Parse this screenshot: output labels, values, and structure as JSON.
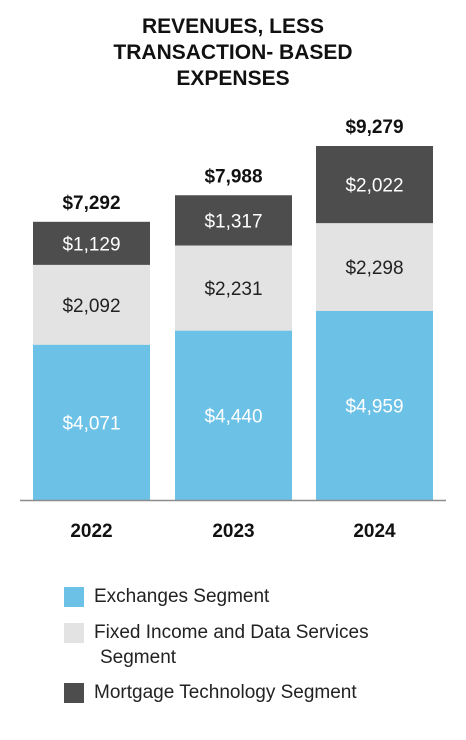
{
  "title_lines": [
    "REVENUES, LESS",
    "TRANSACTION- BASED",
    "EXPENSES"
  ],
  "chart_data": {
    "type": "bar",
    "stacked": true,
    "categories": [
      "2022",
      "2023",
      "2024"
    ],
    "totals": [
      7292,
      7988,
      9279
    ],
    "total_labels": [
      "$7,292",
      "$7,988",
      "$9,279"
    ],
    "series": [
      {
        "name": "Exchanges Segment",
        "values": [
          4071,
          4440,
          4959
        ],
        "labels": [
          "$4,071",
          "$4,440",
          "$4,959"
        ],
        "color": "#6cc1e6",
        "label_color": "#ffffff"
      },
      {
        "name": "Fixed Income and Data Services Segment",
        "values": [
          2092,
          2231,
          2298
        ],
        "labels": [
          "$2,092",
          "$2,231",
          "$2,298"
        ],
        "color": "#e3e3e3",
        "label_color": "#222222"
      },
      {
        "name": "Mortgage Technology Segment",
        "values": [
          1129,
          1317,
          2022
        ],
        "labels": [
          "$1,129",
          "$1,317",
          "$2,022"
        ],
        "color": "#4d4d4d",
        "label_color": "#ffffff"
      }
    ],
    "ylim": [
      0,
      9279
    ],
    "grid": false,
    "legend_position": "bottom"
  },
  "legend": [
    {
      "label": "Exchanges Segment",
      "color": "#6cc1e6"
    },
    {
      "label_lines": [
        "Fixed Income and Data Services",
        "Segment"
      ],
      "color": "#e3e3e3"
    },
    {
      "label": "Mortgage Technology Segment",
      "color": "#4d4d4d"
    }
  ]
}
